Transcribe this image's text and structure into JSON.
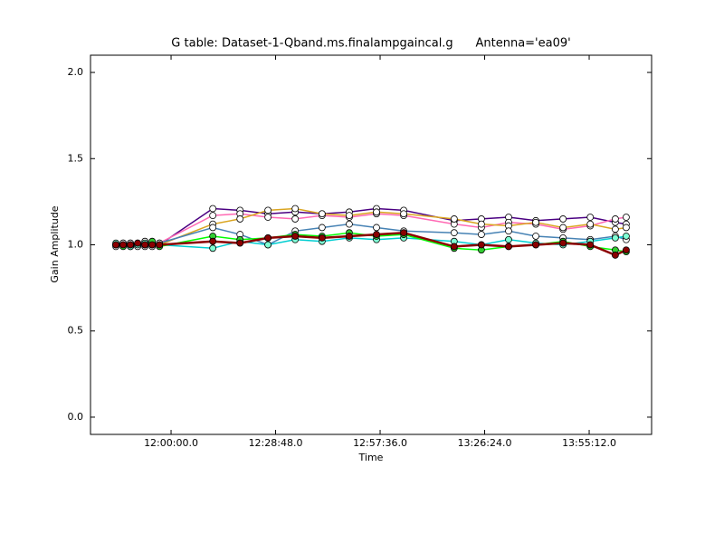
{
  "chart_data": {
    "type": "line",
    "title": "G table: Dataset-1-Qband.ms.finalampgaincal.g      Antenna='ea09'",
    "xlabel": "Time",
    "ylabel": "Gain Amplitude",
    "xlim": [
      697.8,
      852.4
    ],
    "xticks": [
      {
        "value": 720,
        "label": "12:00:00.0"
      },
      {
        "value": 748.8,
        "label": "12:28:48.0"
      },
      {
        "value": 777.6,
        "label": "12:57:36.0"
      },
      {
        "value": 806.4,
        "label": "13:26:24.0"
      },
      {
        "value": 835.2,
        "label": "13:55:12.0"
      }
    ],
    "ylim": [
      -0.1,
      2.1
    ],
    "yticks": [
      {
        "value": 0,
        "label": "0.0"
      },
      0.5,
      {
        "value": 1,
        "label": "1.0"
      },
      1.5,
      {
        "value": 2,
        "label": "2.0"
      }
    ],
    "grid": false,
    "x": [
      704.8,
      706.8,
      708.8,
      710.8,
      712.8,
      714.8,
      716.8,
      731.5,
      739.0,
      746.7,
      754.2,
      761.6,
      769.1,
      776.6,
      784.1,
      798.0,
      805.5,
      813.0,
      820.5,
      828.0,
      835.5,
      842.4,
      845.4
    ],
    "series": [
      {
        "color": "#4b0082",
        "marker_color": "#ffffff",
        "values": [
          1.0,
          1.01,
          0.99,
          1.0,
          1.02,
          1.01,
          1.0,
          1.21,
          1.2,
          1.18,
          1.19,
          1.18,
          1.19,
          1.21,
          1.2,
          1.14,
          1.15,
          1.16,
          1.14,
          1.15,
          1.16,
          1.13,
          1.12
        ]
      },
      {
        "color": "#ff69b4",
        "marker_color": "#ffffff",
        "values": [
          0.99,
          1.0,
          1.01,
          1.0,
          0.99,
          1.0,
          1.01,
          1.17,
          1.18,
          1.16,
          1.15,
          1.17,
          1.16,
          1.18,
          1.17,
          1.12,
          1.1,
          1.13,
          1.12,
          1.09,
          1.11,
          1.15,
          1.16
        ]
      },
      {
        "color": "#daa520",
        "marker_color": "#ffffff",
        "values": [
          1.0,
          1.0,
          1.01,
          1.0,
          1.0,
          0.99,
          1.0,
          1.12,
          1.15,
          1.2,
          1.21,
          1.18,
          1.17,
          1.19,
          1.18,
          1.15,
          1.12,
          1.11,
          1.13,
          1.1,
          1.12,
          1.09,
          1.1
        ]
      },
      {
        "color": "#4682b4",
        "marker_color": "#ffffff",
        "values": [
          1.0,
          1.01,
          1.0,
          0.99,
          1.0,
          1.0,
          1.01,
          1.1,
          1.06,
          1.0,
          1.08,
          1.1,
          1.12,
          1.1,
          1.08,
          1.07,
          1.06,
          1.08,
          1.05,
          1.04,
          1.03,
          1.05,
          1.03
        ]
      },
      {
        "color": "#00ced1",
        "marker_color": "#7fffd4",
        "values": [
          1.01,
          1.0,
          0.99,
          1.0,
          1.01,
          1.0,
          1.0,
          0.98,
          1.02,
          1.0,
          1.03,
          1.02,
          1.04,
          1.03,
          1.04,
          1.02,
          1.0,
          1.03,
          1.01,
          1.0,
          1.02,
          1.04,
          1.05
        ]
      },
      {
        "color": "#00ff00",
        "marker_color": "#32cd32",
        "values": [
          1.0,
          0.99,
          1.0,
          1.01,
          1.0,
          1.02,
          0.99,
          1.05,
          1.03,
          1.04,
          1.06,
          1.05,
          1.07,
          1.05,
          1.06,
          0.98,
          0.97,
          0.99,
          1.0,
          1.02,
          0.99,
          0.97,
          0.96
        ]
      },
      {
        "color": "#8b0000",
        "marker_color": "#8b0000",
        "values": [
          1.0,
          1.0,
          1.0,
          1.01,
          1.0,
          1.0,
          1.0,
          1.02,
          1.01,
          1.04,
          1.05,
          1.04,
          1.05,
          1.06,
          1.07,
          0.99,
          1.0,
          0.99,
          1.0,
          1.01,
          1.0,
          0.94,
          0.97
        ]
      }
    ]
  }
}
